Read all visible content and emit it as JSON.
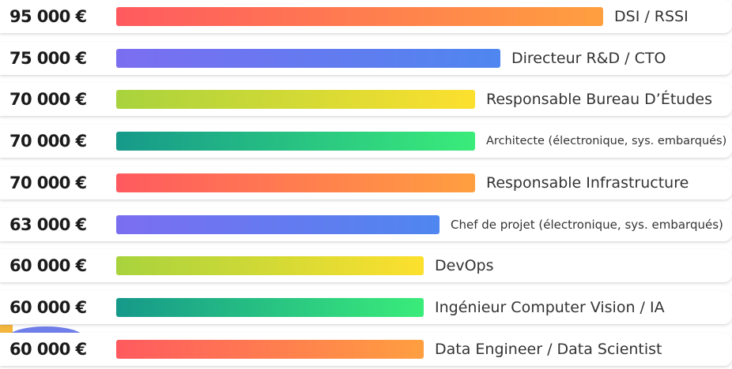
{
  "chart_data": {
    "type": "bar",
    "orientation": "horizontal",
    "unit": "€",
    "categories": [
      "DSI / RSSI",
      "Directeur R&D / CTO",
      "Responsable Bureau D’Études",
      "Architecte (électronique, sys. embarqués)",
      "Responsable Infrastructure",
      "Chef de projet (électronique, sys. embarqués)",
      "DevOps",
      "Ingénieur Computer Vision / IA",
      "Data Engineer / Data Scientist"
    ],
    "values": [
      95000,
      75000,
      70000,
      70000,
      70000,
      63000,
      60000,
      60000,
      60000
    ],
    "value_labels": [
      "95 000 €",
      "75 000 €",
      "70 000 €",
      "70 000 €",
      "70 000 €",
      "63 000 €",
      "60 000 €",
      "60 000 €",
      "60 000 €"
    ],
    "bar_gradients": [
      [
        "#ff5a5f",
        "#ff9f40"
      ],
      [
        "#7b6ef0",
        "#4f86f0"
      ],
      [
        "#a8d33d",
        "#fde02e"
      ],
      [
        "#16998a",
        "#3aec7a"
      ],
      [
        "#ff5a5f",
        "#ff9f40"
      ],
      [
        "#7b6ef0",
        "#4f86f0"
      ],
      [
        "#a8d33d",
        "#fde02e"
      ],
      [
        "#16998a",
        "#3aec7a"
      ],
      [
        "#ff5a5f",
        "#ff9f40"
      ]
    ],
    "grid": false,
    "legend": "none"
  }
}
